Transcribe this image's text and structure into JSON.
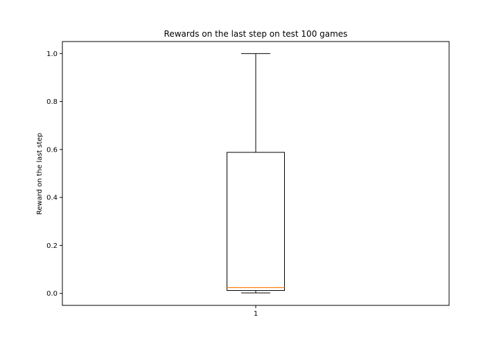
{
  "chart_data": {
    "type": "box",
    "title": "Rewards on the last step on test 100 games",
    "xlabel": "",
    "ylabel": "Reward on the last step",
    "categories": [
      "1"
    ],
    "ylim": [
      -0.05,
      1.05
    ],
    "yticks": [
      "0.0",
      "0.2",
      "0.4",
      "0.6",
      "0.8",
      "1.0"
    ],
    "grid": false,
    "legend": "none",
    "boxes": [
      {
        "label": "1",
        "whisker_low": 0.002,
        "q1": 0.012,
        "median": 0.024,
        "q3": 0.588,
        "whisker_high": 1.0
      }
    ],
    "colors": {
      "box": "#000000",
      "median": "#ff7f0e"
    }
  }
}
